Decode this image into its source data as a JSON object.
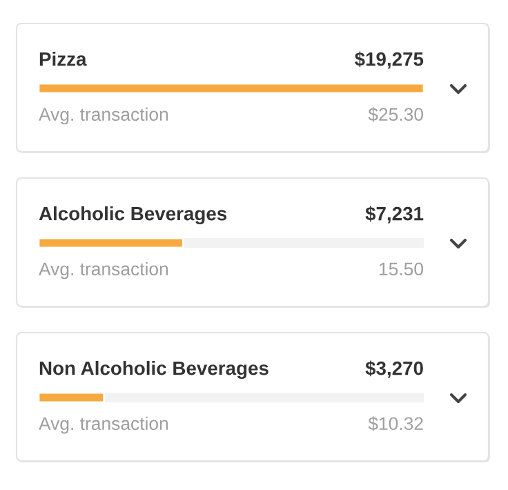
{
  "chart_data": {
    "type": "bar",
    "orientation": "horizontal",
    "categories": [
      "Pizza",
      "Alcoholic Beverages",
      "Non Alcoholic Beverages"
    ],
    "values": [
      19275,
      7231,
      3270
    ],
    "value_labels": [
      "$19,275",
      "$7,231",
      "$3,270"
    ],
    "color": "#f5a93f",
    "annotations": [
      "Avg. transaction",
      "$25.30",
      "Avg. transaction",
      "15.50",
      "Avg. transaction",
      "$10.32"
    ],
    "legend": false
  }
}
